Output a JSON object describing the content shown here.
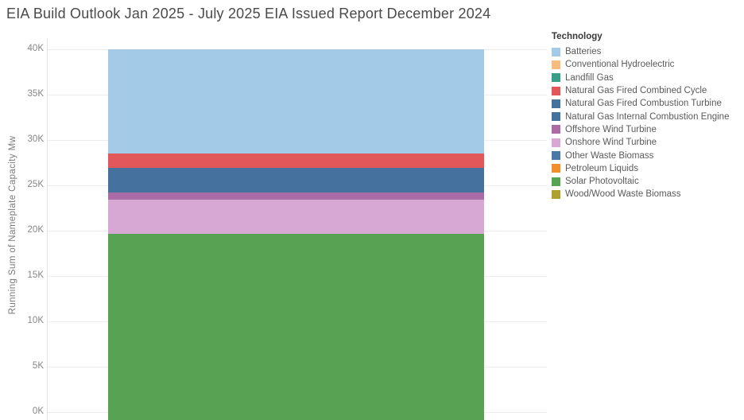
{
  "title": "EIA Build Outlook Jan 2025 - July 2025 EIA Issued Report December 2024",
  "y_axis": {
    "title": "Running Sum of Nameplate Capacity Mw",
    "ticks": [
      {
        "label": "40K",
        "value": 40000
      },
      {
        "label": "35K",
        "value": 35000
      },
      {
        "label": "30K",
        "value": 30000
      },
      {
        "label": "25K",
        "value": 25000
      },
      {
        "label": "20K",
        "value": 20000
      },
      {
        "label": "15K",
        "value": 15000
      },
      {
        "label": "10K",
        "value": 10000
      },
      {
        "label": "5K",
        "value": 5000
      },
      {
        "label": "0K",
        "value": 0
      }
    ]
  },
  "legend": {
    "title": "Technology"
  },
  "technologies": [
    {
      "label": "Batteries",
      "color": "#a3cbe8",
      "value_mw": 11450
    },
    {
      "label": "Conventional Hydroelectric",
      "color": "#f9bc7f",
      "value_mw": 0
    },
    {
      "label": "Landfill Gas",
      "color": "#38a088",
      "value_mw": 0
    },
    {
      "label": "Natural Gas Fired Combined Cycle",
      "color": "#e1575a",
      "value_mw": 1600
    },
    {
      "label": "Natural Gas Fired Combustion Turbine",
      "color": "#44719e",
      "value_mw": 2700
    },
    {
      "label": "Natural Gas Internal Combustion Engine",
      "color": "#44719e",
      "value_mw": 0
    },
    {
      "label": "Offshore Wind Turbine",
      "color": "#ab6ba5",
      "value_mw": 800
    },
    {
      "label": "Onshore Wind Turbine",
      "color": "#d6a8d3",
      "value_mw": 3800
    },
    {
      "label": "Other Waste Biomass",
      "color": "#4a79a9",
      "value_mw": 0
    },
    {
      "label": "Petroleum Liquids",
      "color": "#f28e2b",
      "value_mw": 0
    },
    {
      "label": "Solar Photovoltaic",
      "color": "#56a354",
      "value_mw": 19650
    },
    {
      "label": "Wood/Wood Waste Biomass",
      "color": "#b0a02f",
      "value_mw": 0
    }
  ],
  "chart_data": {
    "type": "area",
    "title": "EIA Build Outlook Jan 2025 - July 2025 EIA Issued Report December 2024",
    "xlabel": "",
    "ylabel": "Running Sum of Nameplate Capacity Mw",
    "ylim": [
      0,
      40000
    ],
    "grid": "horizontal",
    "legend_position": "right",
    "legend_title": "Technology",
    "stack_order": "legend order, top to bottom",
    "total_mw": 40000,
    "series": [
      {
        "name": "Batteries",
        "value_mw": 11450
      },
      {
        "name": "Conventional Hydroelectric",
        "value_mw": 0
      },
      {
        "name": "Landfill Gas",
        "value_mw": 0
      },
      {
        "name": "Natural Gas Fired Combined Cycle",
        "value_mw": 1600
      },
      {
        "name": "Natural Gas Fired Combustion Turbine",
        "value_mw": 2700
      },
      {
        "name": "Natural Gas Internal Combustion Engine",
        "value_mw": 0
      },
      {
        "name": "Offshore Wind Turbine",
        "value_mw": 800
      },
      {
        "name": "Onshore Wind Turbine",
        "value_mw": 3800
      },
      {
        "name": "Other Waste Biomass",
        "value_mw": 0
      },
      {
        "name": "Petroleum Liquids",
        "value_mw": 0
      },
      {
        "name": "Solar Photovoltaic",
        "value_mw": 19650
      },
      {
        "name": "Wood/Wood Waste Biomass",
        "value_mw": 0
      }
    ],
    "cumulative_boundaries_mw": [
      40000,
      28550,
      26950,
      24250,
      23450,
      19650,
      0
    ]
  }
}
